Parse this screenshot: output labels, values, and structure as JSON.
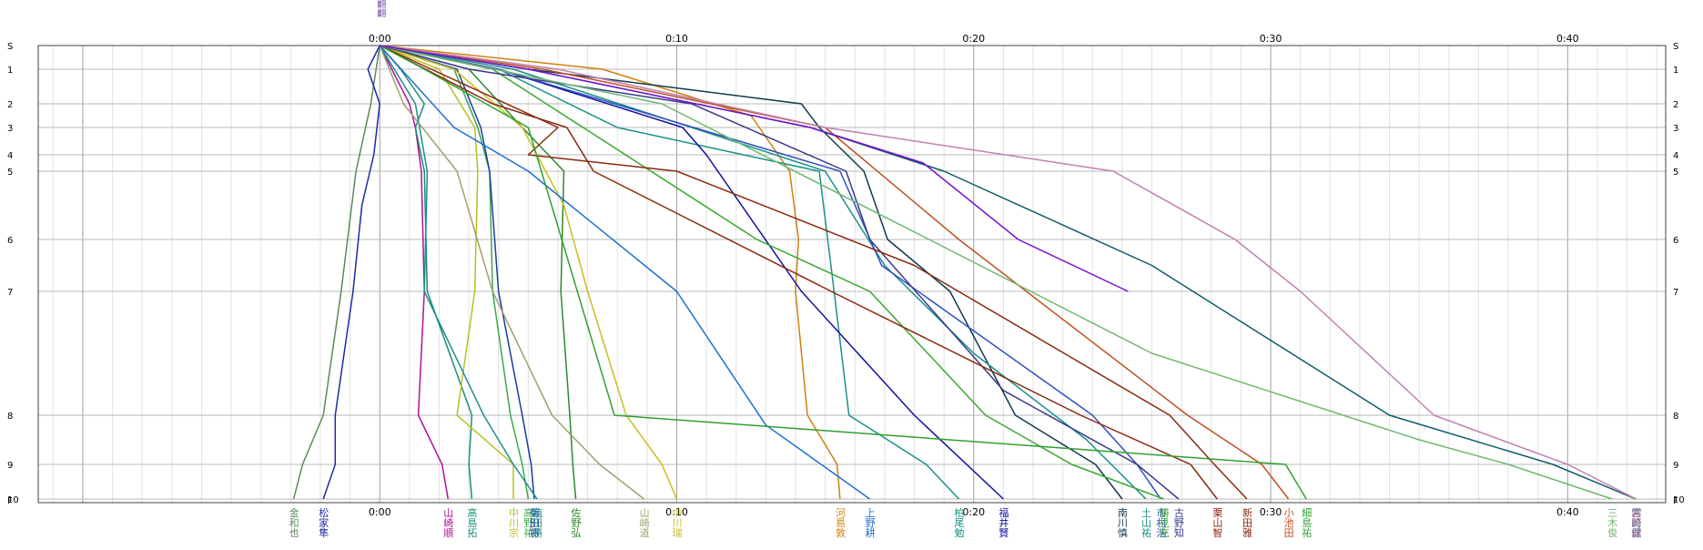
{
  "chart_data": {
    "type": "line",
    "x_unit": "minutes",
    "xlim": [
      -11.5,
      43.3
    ],
    "x_ticks": [
      {
        "value": 0,
        "label": "0:00"
      },
      {
        "value": 10,
        "label": "0:10"
      },
      {
        "value": 20,
        "label": "0:20"
      },
      {
        "value": 30,
        "label": "0:30"
      },
      {
        "value": 40,
        "label": "0:40"
      }
    ],
    "y_stations": [
      {
        "label": "S",
        "pos": 0
      },
      {
        "label": "1",
        "pos": 1
      },
      {
        "label": "2",
        "pos": 2
      },
      {
        "label": "3",
        "pos": 3
      },
      {
        "label": "4",
        "pos": 4
      },
      {
        "label": "5",
        "pos": 5
      },
      {
        "label": "6",
        "pos": 6
      },
      {
        "label": "7",
        "pos": 7
      },
      {
        "label": "8",
        "pos": 8
      },
      {
        "label": "9",
        "pos": 9
      },
      {
        "label": "10",
        "pos": 10
      },
      {
        "label": "F",
        "pos": 10.2
      }
    ],
    "top_marker": {
      "text": "翻翻翻",
      "color": "#6a3fa0"
    },
    "series": [
      {
        "name": "金和也",
        "color": "#5a8a5a",
        "points": [
          [
            0,
            0
          ],
          [
            -0.3,
            2
          ],
          [
            -0.8,
            5
          ],
          [
            -1.3,
            7
          ],
          [
            -1.9,
            8
          ],
          [
            -2.6,
            9
          ],
          [
            -2.9,
            10
          ]
        ]
      },
      {
        "name": "松家隼",
        "color": "#1f2aa6",
        "points": [
          [
            0,
            0
          ],
          [
            -0.4,
            1
          ],
          [
            0,
            2
          ],
          [
            -0.2,
            4
          ],
          [
            -0.6,
            5.5
          ],
          [
            -0.9,
            7
          ],
          [
            -1.5,
            8
          ],
          [
            -1.5,
            9
          ],
          [
            -1.9,
            10
          ]
        ]
      },
      {
        "name": "山崎順",
        "color": "#b0109a",
        "points": [
          [
            0,
            0
          ],
          [
            1,
            2
          ],
          [
            1.2,
            3
          ],
          [
            1.4,
            5
          ],
          [
            1.5,
            7
          ],
          [
            1.3,
            8
          ],
          [
            2.1,
            9
          ],
          [
            2.3,
            10
          ]
        ]
      },
      {
        "name": "高島拓",
        "color": "#1a8c7a",
        "points": [
          [
            0,
            0
          ],
          [
            0.7,
            1
          ],
          [
            1.5,
            2
          ],
          [
            1.2,
            3
          ],
          [
            1.5,
            5
          ],
          [
            1.6,
            7
          ],
          [
            3.1,
            8
          ],
          [
            3.0,
            9
          ],
          [
            3.1,
            10
          ]
        ]
      },
      {
        "name": "中川宗",
        "color": "#b8c020",
        "points": [
          [
            0,
            0
          ],
          [
            2,
            1
          ],
          [
            3.2,
            3
          ],
          [
            3.3,
            5
          ],
          [
            3.2,
            7
          ],
          [
            2.6,
            8
          ],
          [
            4.5,
            9
          ],
          [
            4.5,
            10
          ]
        ]
      },
      {
        "name": "高野祐",
        "color": "#3aa84a",
        "points": [
          [
            0,
            0
          ],
          [
            2.5,
            1
          ],
          [
            3.3,
            3
          ],
          [
            3.7,
            5
          ],
          [
            3.8,
            7
          ],
          [
            4.4,
            8
          ],
          [
            4.8,
            9
          ],
          [
            5.0,
            10
          ]
        ]
      },
      {
        "name": "菊田将",
        "color": "#1a3aa0",
        "points": [
          [
            0,
            0
          ],
          [
            2.6,
            1
          ],
          [
            3.4,
            3
          ],
          [
            3.7,
            5
          ],
          [
            4.0,
            7
          ],
          [
            4.8,
            8
          ],
          [
            5.1,
            9
          ],
          [
            5.2,
            10
          ]
        ]
      },
      {
        "name": "植田勝",
        "color": "#1a9088",
        "points": [
          [
            0,
            0
          ],
          [
            1.2,
            2
          ],
          [
            1.5,
            4
          ],
          [
            1.6,
            5
          ],
          [
            1.5,
            7
          ],
          [
            3.5,
            8
          ],
          [
            4.5,
            9
          ],
          [
            5.3,
            10
          ]
        ]
      },
      {
        "name": "佐野弘",
        "color": "#2a8a2a",
        "points": [
          [
            0,
            0
          ],
          [
            3,
            1
          ],
          [
            4.8,
            3
          ],
          [
            6.2,
            5
          ],
          [
            6.1,
            7
          ],
          [
            6.4,
            8
          ],
          [
            6.5,
            9
          ],
          [
            6.6,
            10
          ]
        ]
      },
      {
        "name": "山崎道",
        "color": "#a0a070",
        "points": [
          [
            0,
            0
          ],
          [
            0.8,
            2
          ],
          [
            2.6,
            5
          ],
          [
            3.8,
            7
          ],
          [
            5.8,
            8
          ],
          [
            7.4,
            9
          ],
          [
            8.9,
            10
          ]
        ]
      },
      {
        "name": "中川瑞",
        "color": "#c8c020",
        "points": [
          [
            0,
            0
          ],
          [
            2.5,
            1
          ],
          [
            4.8,
            3
          ],
          [
            6.2,
            5.5
          ],
          [
            7.0,
            7
          ],
          [
            8.3,
            8
          ],
          [
            9.5,
            9
          ],
          [
            10.0,
            10
          ]
        ]
      },
      {
        "name": "河島敦",
        "color": "#d08010",
        "points": [
          [
            0,
            0
          ],
          [
            7.5,
            1
          ],
          [
            12.5,
            2.5
          ],
          [
            13.8,
            5
          ],
          [
            14.1,
            6
          ],
          [
            14.0,
            7
          ],
          [
            14.4,
            8
          ],
          [
            15.4,
            9
          ],
          [
            15.5,
            10
          ]
        ]
      },
      {
        "name": "上野耕",
        "color": "#2070d0",
        "points": [
          [
            0,
            0
          ],
          [
            2.5,
            3
          ],
          [
            5,
            5
          ],
          [
            10,
            7
          ],
          [
            13,
            8.2
          ],
          [
            16.5,
            10
          ]
        ]
      },
      {
        "name": "柏尾勉",
        "color": "#1a9088",
        "points": [
          [
            0,
            0
          ],
          [
            4,
            1
          ],
          [
            8,
            3
          ],
          [
            14.8,
            5
          ],
          [
            15.3,
            7
          ],
          [
            15.8,
            8
          ],
          [
            18.4,
            9
          ],
          [
            19.5,
            10
          ]
        ]
      },
      {
        "name": "福井賢",
        "color": "#1010a0",
        "points": [
          [
            0,
            0
          ],
          [
            4,
            1
          ],
          [
            10.2,
            3
          ],
          [
            11,
            4
          ],
          [
            14.2,
            7
          ],
          [
            18,
            8
          ],
          [
            21,
            10
          ]
        ]
      },
      {
        "name": "南川慎",
        "color": "#103a50",
        "points": [
          [
            0,
            0
          ],
          [
            5,
            1
          ],
          [
            14.2,
            2
          ],
          [
            14.8,
            3
          ],
          [
            16.3,
            5
          ],
          [
            17.1,
            6
          ],
          [
            19.2,
            7
          ],
          [
            21.4,
            8
          ],
          [
            24.1,
            9
          ],
          [
            25.0,
            10
          ]
        ]
      },
      {
        "name": "土山祐",
        "color": "#1a9088",
        "points": [
          [
            0,
            0
          ],
          [
            4.5,
            1
          ],
          [
            15,
            5
          ],
          [
            17,
            6.5
          ],
          [
            20,
            7.5
          ],
          [
            23.8,
            8.5
          ],
          [
            25.8,
            10
          ]
        ]
      },
      {
        "name": "市村浩",
        "color": "#3050c0",
        "points": [
          [
            0,
            0
          ],
          [
            4,
            1
          ],
          [
            15.5,
            5
          ],
          [
            16.9,
            6.5
          ],
          [
            24,
            8
          ],
          [
            25.5,
            9
          ],
          [
            26.3,
            10
          ]
        ]
      },
      {
        "name": "勝見充",
        "color": "#3aa830",
        "points": [
          [
            0,
            0
          ],
          [
            3.8,
            1
          ],
          [
            12.7,
            6
          ],
          [
            16.5,
            7
          ],
          [
            20.4,
            8
          ],
          [
            23.3,
            9
          ],
          [
            26.4,
            10
          ]
        ]
      },
      {
        "name": "古野知",
        "color": "#3a3a8a",
        "points": [
          [
            0,
            0
          ],
          [
            3,
            1
          ],
          [
            10.5,
            2
          ],
          [
            15.7,
            5
          ],
          [
            16.5,
            6
          ],
          [
            21,
            7.8
          ],
          [
            25.5,
            9
          ],
          [
            26.9,
            10
          ]
        ]
      },
      {
        "name": "栗山智",
        "color": "#8a2a10",
        "points": [
          [
            0,
            0
          ],
          [
            3.8,
            2
          ],
          [
            6.3,
            3
          ],
          [
            7.2,
            5
          ],
          [
            15.2,
            7
          ],
          [
            23.6,
            8
          ],
          [
            27.3,
            9
          ],
          [
            28.2,
            10
          ]
        ]
      },
      {
        "name": "新田雅",
        "color": "#8a2a10",
        "points": [
          [
            0,
            0
          ],
          [
            6,
            3
          ],
          [
            5,
            4
          ],
          [
            10,
            5
          ],
          [
            18,
            6.5
          ],
          [
            26.6,
            8
          ],
          [
            28.1,
            9
          ],
          [
            29.2,
            10
          ]
        ]
      },
      {
        "name": "小池田",
        "color": "#c05020",
        "points": [
          [
            0,
            0
          ],
          [
            5.5,
            1
          ],
          [
            15,
            3
          ],
          [
            19.5,
            6
          ],
          [
            27.2,
            8
          ],
          [
            29.7,
            9
          ],
          [
            30.6,
            10
          ]
        ]
      },
      {
        "name": "細島祐",
        "color": "#30a030",
        "points": [
          [
            0,
            0
          ],
          [
            1.5,
            1
          ],
          [
            5,
            3
          ],
          [
            7.9,
            8
          ],
          [
            30.5,
            9
          ],
          [
            31.2,
            10
          ]
        ]
      },
      {
        "name": "三木俊",
        "color": "#70b870",
        "points": [
          [
            0,
            0
          ],
          [
            9.5,
            2
          ],
          [
            18.5,
            6
          ],
          [
            26,
            7.5
          ],
          [
            35,
            8.5
          ],
          [
            38,
            9
          ],
          [
            41.5,
            10
          ]
        ]
      },
      {
        "name": "宮崎健",
        "color": "#0f5a6a",
        "points": [
          [
            0,
            0
          ],
          [
            5,
            1
          ],
          [
            14.5,
            3
          ],
          [
            19,
            5
          ],
          [
            26,
            6.5
          ],
          [
            34,
            8
          ],
          [
            39.5,
            9
          ],
          [
            42.3,
            10
          ]
        ]
      },
      {
        "name": "越野誠",
        "color": "#c080b0",
        "points": [
          [
            0,
            0
          ],
          [
            6,
            1
          ],
          [
            15,
            3
          ],
          [
            24.7,
            5
          ],
          [
            28.8,
            6
          ],
          [
            31,
            7
          ],
          [
            35.5,
            8
          ],
          [
            40,
            9
          ],
          [
            42.3,
            10
          ]
        ]
      },
      {
        "name": "",
        "color": "#7a10d0",
        "points": [
          [
            0,
            0
          ],
          [
            5,
            1
          ],
          [
            14.5,
            3
          ],
          [
            18.3,
            4.5
          ],
          [
            21.5,
            6
          ],
          [
            25.2,
            7
          ]
        ]
      }
    ]
  }
}
